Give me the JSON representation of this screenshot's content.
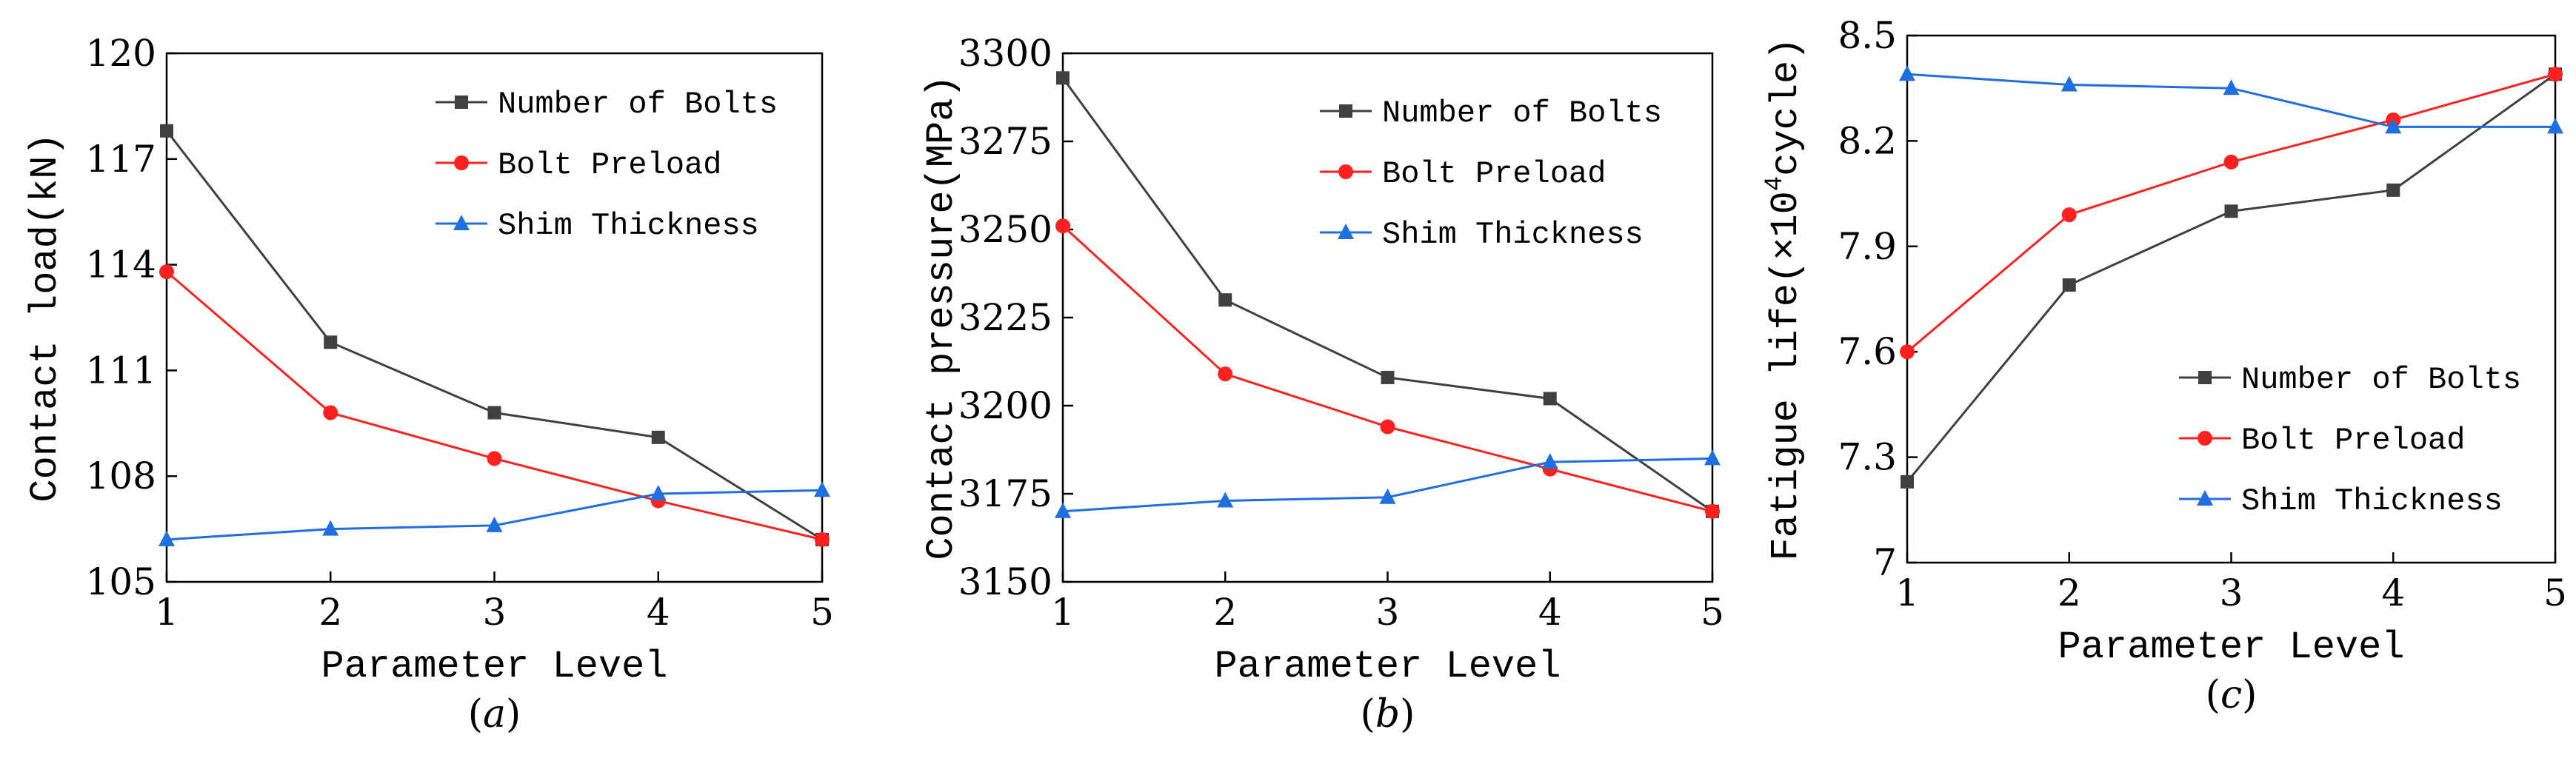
{
  "chart_data": [
    {
      "type": "line",
      "caption_open": "(",
      "caption_letter": "a",
      "caption_close": ")",
      "xlabel": "Parameter Level",
      "ylabel": "Contact load(kN)",
      "x": [
        1,
        2,
        3,
        4,
        5
      ],
      "xticks": [
        "1",
        "2",
        "3",
        "4",
        "5"
      ],
      "ylim": [
        105,
        120
      ],
      "yticks": [
        "105",
        "108",
        "111",
        "114",
        "117",
        "120"
      ],
      "legend_position": "top-right",
      "series": [
        {
          "name": "Number of Bolts",
          "color": "#404040",
          "marker": "square",
          "values": [
            117.8,
            111.8,
            109.8,
            109.1,
            106.2
          ]
        },
        {
          "name": "Bolt Preload",
          "color": "#ff2020",
          "marker": "circle",
          "values": [
            113.8,
            109.8,
            108.5,
            107.3,
            106.2
          ]
        },
        {
          "name": "Shim Thickness",
          "color": "#1f6fdf",
          "marker": "triangle",
          "values": [
            106.2,
            106.5,
            106.6,
            107.5,
            107.6
          ]
        }
      ]
    },
    {
      "type": "line",
      "caption_open": "(",
      "caption_letter": "b",
      "caption_close": ")",
      "xlabel": "Parameter Level",
      "ylabel": "Contact pressure(MPa)",
      "x": [
        1,
        2,
        3,
        4,
        5
      ],
      "xticks": [
        "1",
        "2",
        "3",
        "4",
        "5"
      ],
      "ylim": [
        3150,
        3300
      ],
      "yticks": [
        "3150",
        "3175",
        "3200",
        "3225",
        "3250",
        "3275",
        "3300"
      ],
      "legend_position": "top-right",
      "series": [
        {
          "name": "Number of Bolts",
          "color": "#404040",
          "marker": "square",
          "values": [
            3293,
            3230,
            3208,
            3202,
            3170
          ]
        },
        {
          "name": "Bolt Preload",
          "color": "#ff2020",
          "marker": "circle",
          "values": [
            3251,
            3209,
            3194,
            3182,
            3170
          ]
        },
        {
          "name": "Shim Thickness",
          "color": "#1f6fdf",
          "marker": "triangle",
          "values": [
            3170,
            3173,
            3174,
            3184,
            3185
          ]
        }
      ]
    },
    {
      "type": "line",
      "caption_open": "(",
      "caption_letter": "c",
      "caption_close": ")",
      "xlabel": "Parameter Level",
      "ylabel_prefix": "Fatigue life(×10",
      "ylabel_sup": "4",
      "ylabel_suffix": "cycle)",
      "x": [
        1,
        2,
        3,
        4,
        5
      ],
      "xticks": [
        "1",
        "2",
        "3",
        "4",
        "5"
      ],
      "ylim": [
        7.0,
        8.5
      ],
      "yticks": [
        "7",
        "7.3",
        "7.6",
        "7.9",
        "8.2",
        "8.5"
      ],
      "legend_position": "lower-right",
      "series": [
        {
          "name": "Number of Bolts",
          "color": "#404040",
          "marker": "square",
          "values": [
            7.23,
            7.79,
            8.0,
            8.06,
            8.39
          ]
        },
        {
          "name": "Bolt Preload",
          "color": "#ff2020",
          "marker": "circle",
          "values": [
            7.6,
            7.99,
            8.14,
            8.26,
            8.39
          ]
        },
        {
          "name": "Shim Thickness",
          "color": "#1f6fdf",
          "marker": "triangle",
          "values": [
            8.39,
            8.36,
            8.35,
            8.24,
            8.24
          ]
        }
      ]
    }
  ]
}
